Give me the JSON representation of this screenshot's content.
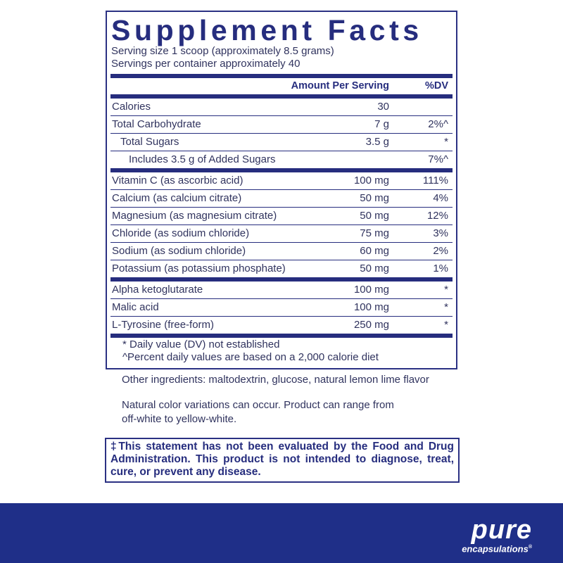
{
  "title": "Supplement Facts",
  "serving_size": "Serving size 1 scoop (approximately 8.5 grams)",
  "servings_per_container": "Servings per container  approximately 40",
  "header": {
    "amount": "Amount Per Serving",
    "dv": "%DV"
  },
  "sections": [
    [
      {
        "name": "Calories",
        "amount": "30",
        "dv": ""
      },
      {
        "name": "Total Carbohydrate",
        "amount": "7 g",
        "dv": "2%^"
      },
      {
        "name": "Total Sugars",
        "amount": "3.5 g",
        "dv": "*"
      },
      {
        "name": "Includes 3.5 g of Added Sugars",
        "amount": "",
        "dv": "7%^"
      }
    ],
    [
      {
        "name": "Vitamin C (as ascorbic acid)",
        "amount": "100 mg",
        "dv": "111%"
      },
      {
        "name": "Calcium (as calcium citrate)",
        "amount": "50 mg",
        "dv": "4%"
      },
      {
        "name": "Magnesium (as magnesium citrate)",
        "amount": "50 mg",
        "dv": "12%"
      },
      {
        "name": "Chloride (as sodium chloride)",
        "amount": "75 mg",
        "dv": "3%"
      },
      {
        "name": "Sodium (as sodium chloride)",
        "amount": "60 mg",
        "dv": "2%"
      },
      {
        "name": "Potassium (as potassium phosphate)",
        "amount": "50 mg",
        "dv": "1%"
      }
    ],
    [
      {
        "name": "Alpha ketoglutarate",
        "amount": "100 mg",
        "dv": "*"
      },
      {
        "name": "Malic acid",
        "amount": "100 mg",
        "dv": "*"
      },
      {
        "name": "L-Tyrosine (free-form)",
        "amount": "250 mg",
        "dv": "*"
      }
    ]
  ],
  "footnotes": [
    "*  Daily value (DV) not established",
    "^Percent daily values are based on a 2,000 calorie diet"
  ],
  "other_ingredients": "Other ingredients: maltodextrin, glucose, natural lemon lime flavor",
  "color_note": [
    "Natural color variations can occur. Product can range from",
    "off-white to yellow-white."
  ],
  "disclaimer": "‡This statement has not been evaluated by the Food and Drug Administration. This product is not intended to diagnose, treat, cure, or prevent any disease.",
  "brand": {
    "name": "pure",
    "sub": "encapsulations",
    "mark": "®"
  },
  "colors": {
    "navy": "#262d7e",
    "footer": "#1f2f88"
  }
}
